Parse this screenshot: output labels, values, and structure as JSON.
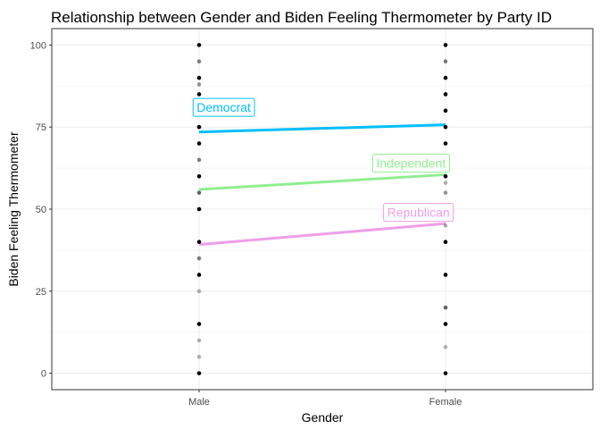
{
  "chart_data": {
    "type": "scatter",
    "title": "Relationship between Gender and Biden Feeling Thermometer by Party ID",
    "xlabel": "Gender",
    "ylabel": "Biden Feeling Thermometer",
    "categories": [
      "Male",
      "Female"
    ],
    "ylim": [
      -5,
      105
    ],
    "y_ticks": [
      0,
      25,
      50,
      75,
      100
    ],
    "grid": true,
    "theme": "bw",
    "points": {
      "Male": [
        {
          "y": 0,
          "opacity": 1
        },
        {
          "y": 5,
          "opacity": 0.3
        },
        {
          "y": 10,
          "opacity": 0.3
        },
        {
          "y": 15,
          "opacity": 1
        },
        {
          "y": 25,
          "opacity": 0.3
        },
        {
          "y": 30,
          "opacity": 1
        },
        {
          "y": 35,
          "opacity": 0.5
        },
        {
          "y": 40,
          "opacity": 1
        },
        {
          "y": 50,
          "opacity": 1
        },
        {
          "y": 55,
          "opacity": 0.6
        },
        {
          "y": 60,
          "opacity": 1
        },
        {
          "y": 65,
          "opacity": 0.5
        },
        {
          "y": 70,
          "opacity": 1
        },
        {
          "y": 75,
          "opacity": 1
        },
        {
          "y": 80,
          "opacity": 0.7
        },
        {
          "y": 85,
          "opacity": 1
        },
        {
          "y": 88,
          "opacity": 0.4
        },
        {
          "y": 90,
          "opacity": 1
        },
        {
          "y": 95,
          "opacity": 0.5
        },
        {
          "y": 100,
          "opacity": 1
        }
      ],
      "Female": [
        {
          "y": 0,
          "opacity": 1
        },
        {
          "y": 8,
          "opacity": 0.3
        },
        {
          "y": 15,
          "opacity": 1
        },
        {
          "y": 20,
          "opacity": 0.6
        },
        {
          "y": 30,
          "opacity": 1
        },
        {
          "y": 40,
          "opacity": 1
        },
        {
          "y": 45,
          "opacity": 0.3
        },
        {
          "y": 50,
          "opacity": 1
        },
        {
          "y": 55,
          "opacity": 0.4
        },
        {
          "y": 58,
          "opacity": 0.3
        },
        {
          "y": 60,
          "opacity": 1
        },
        {
          "y": 65,
          "opacity": 0.4
        },
        {
          "y": 70,
          "opacity": 1
        },
        {
          "y": 75,
          "opacity": 1
        },
        {
          "y": 80,
          "opacity": 1
        },
        {
          "y": 85,
          "opacity": 1
        },
        {
          "y": 90,
          "opacity": 1
        },
        {
          "y": 95,
          "opacity": 0.5
        },
        {
          "y": 100,
          "opacity": 1
        }
      ]
    },
    "series": [
      {
        "name": "Democrat",
        "color": "#00BFFF",
        "values": [
          73.5,
          75.7
        ]
      },
      {
        "name": "Independent",
        "color": "#90EE90",
        "values": [
          56,
          60.5
        ]
      },
      {
        "name": "Republican",
        "color": "#EE9FE8",
        "values": [
          39.2,
          45.6
        ]
      }
    ],
    "annotations": [
      {
        "text": "Democrat",
        "series": "Democrat",
        "x": 1.1,
        "y": 81
      },
      {
        "text": "Independent",
        "series": "Independent",
        "x": 1.86,
        "y": 64
      },
      {
        "text": "Republican",
        "series": "Republican",
        "x": 1.89,
        "y": 49
      }
    ]
  }
}
